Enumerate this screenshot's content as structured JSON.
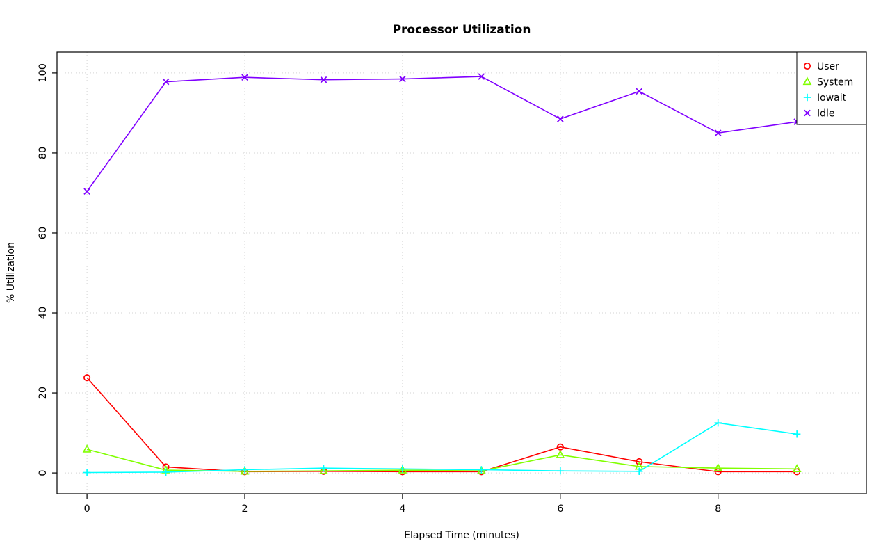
{
  "chart_data": {
    "type": "line",
    "title": "Processor Utilization",
    "xlabel": "Elapsed Time (minutes)",
    "ylabel": "% Utilization",
    "x": [
      0,
      1,
      2,
      3,
      4,
      5,
      6,
      7,
      8,
      9
    ],
    "xlim": [
      0,
      9.5
    ],
    "ylim": [
      0,
      100
    ],
    "x_ticks": [
      0,
      2,
      4,
      6,
      8
    ],
    "y_ticks": [
      0,
      20,
      40,
      60,
      80,
      100
    ],
    "grid": "dotted",
    "grid_color": "#D3D3D3",
    "legend_position": "topright",
    "series": [
      {
        "name": "User",
        "color": "#FF0000",
        "marker": "circle",
        "values": [
          23.8,
          1.5,
          0.3,
          0.4,
          0.3,
          0.3,
          6.5,
          2.8,
          0.3,
          0.3
        ]
      },
      {
        "name": "System",
        "color": "#80FF00",
        "marker": "triangle",
        "values": [
          5.9,
          0.7,
          0.4,
          0.5,
          0.7,
          0.5,
          4.5,
          1.6,
          1.2,
          1.0
        ]
      },
      {
        "name": "Iowait",
        "color": "#00FFFF",
        "marker": "plus",
        "values": [
          0.1,
          0.2,
          0.8,
          1.2,
          1.0,
          0.8,
          0.5,
          0.4,
          12.5,
          9.7
        ]
      },
      {
        "name": "Idle",
        "color": "#8000FF",
        "marker": "x",
        "values": [
          70.4,
          97.8,
          98.9,
          98.3,
          98.5,
          99.1,
          88.5,
          95.4,
          85.0,
          87.8
        ]
      }
    ]
  }
}
